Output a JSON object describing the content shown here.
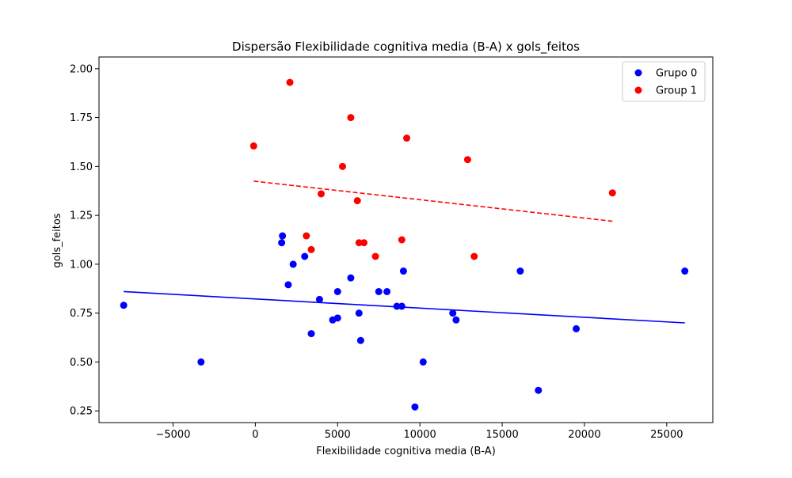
{
  "chart_data": {
    "type": "scatter",
    "title": "Dispersão Flexibilidade cognitiva media (B-A) x gols_feitos",
    "xlabel": "Flexibilidade cognitiva media (B-A)",
    "ylabel": "gols_feitos",
    "xlim": [
      -9500,
      27800
    ],
    "ylim": [
      0.19,
      2.06
    ],
    "xticks": [
      -5000,
      0,
      5000,
      10000,
      15000,
      20000,
      25000
    ],
    "xtick_labels": [
      "−5000",
      "0",
      "5000",
      "10000",
      "15000",
      "20000",
      "25000"
    ],
    "yticks": [
      0.25,
      0.5,
      0.75,
      1.0,
      1.25,
      1.5,
      1.75,
      2.0
    ],
    "ytick_labels": [
      "0.25",
      "0.50",
      "0.75",
      "1.00",
      "1.25",
      "1.50",
      "1.75",
      "2.00"
    ],
    "grid": false,
    "legend_position": "top-right",
    "series": [
      {
        "name": "Grupo 0",
        "color": "#0000ff",
        "points": [
          [
            -8000,
            0.79
          ],
          [
            -3300,
            0.5
          ],
          [
            1600,
            1.11
          ],
          [
            1650,
            1.145
          ],
          [
            2000,
            0.895
          ],
          [
            2300,
            1.0
          ],
          [
            3000,
            1.04
          ],
          [
            3400,
            0.645
          ],
          [
            3900,
            0.82
          ],
          [
            4700,
            0.715
          ],
          [
            5000,
            0.725
          ],
          [
            5000,
            0.86
          ],
          [
            5800,
            0.93
          ],
          [
            6300,
            0.75
          ],
          [
            6400,
            0.61
          ],
          [
            7500,
            0.86
          ],
          [
            8000,
            0.86
          ],
          [
            8600,
            0.785
          ],
          [
            8900,
            0.785
          ],
          [
            9000,
            0.965
          ],
          [
            9700,
            0.27
          ],
          [
            10200,
            0.5
          ],
          [
            12000,
            0.75
          ],
          [
            12200,
            0.715
          ],
          [
            16100,
            0.965
          ],
          [
            17200,
            0.355
          ],
          [
            19500,
            0.67
          ],
          [
            26100,
            0.965
          ]
        ],
        "trend": {
          "x": [
            -8000,
            26100
          ],
          "y": [
            0.86,
            0.7
          ],
          "dashed": false
        }
      },
      {
        "name": "Group 1",
        "color": "#ff0000",
        "points": [
          [
            -100,
            1.605
          ],
          [
            2100,
            1.93
          ],
          [
            3100,
            1.145
          ],
          [
            3400,
            1.075
          ],
          [
            4000,
            1.36
          ],
          [
            5300,
            1.5
          ],
          [
            5800,
            1.75
          ],
          [
            6200,
            1.325
          ],
          [
            6300,
            1.11
          ],
          [
            6600,
            1.11
          ],
          [
            7300,
            1.04
          ],
          [
            8900,
            1.125
          ],
          [
            9200,
            1.645
          ],
          [
            12900,
            1.535
          ],
          [
            13300,
            1.04
          ],
          [
            21700,
            1.365
          ]
        ],
        "trend": {
          "x": [
            -100,
            21700
          ],
          "y": [
            1.425,
            1.22
          ],
          "dashed": true
        }
      }
    ]
  }
}
